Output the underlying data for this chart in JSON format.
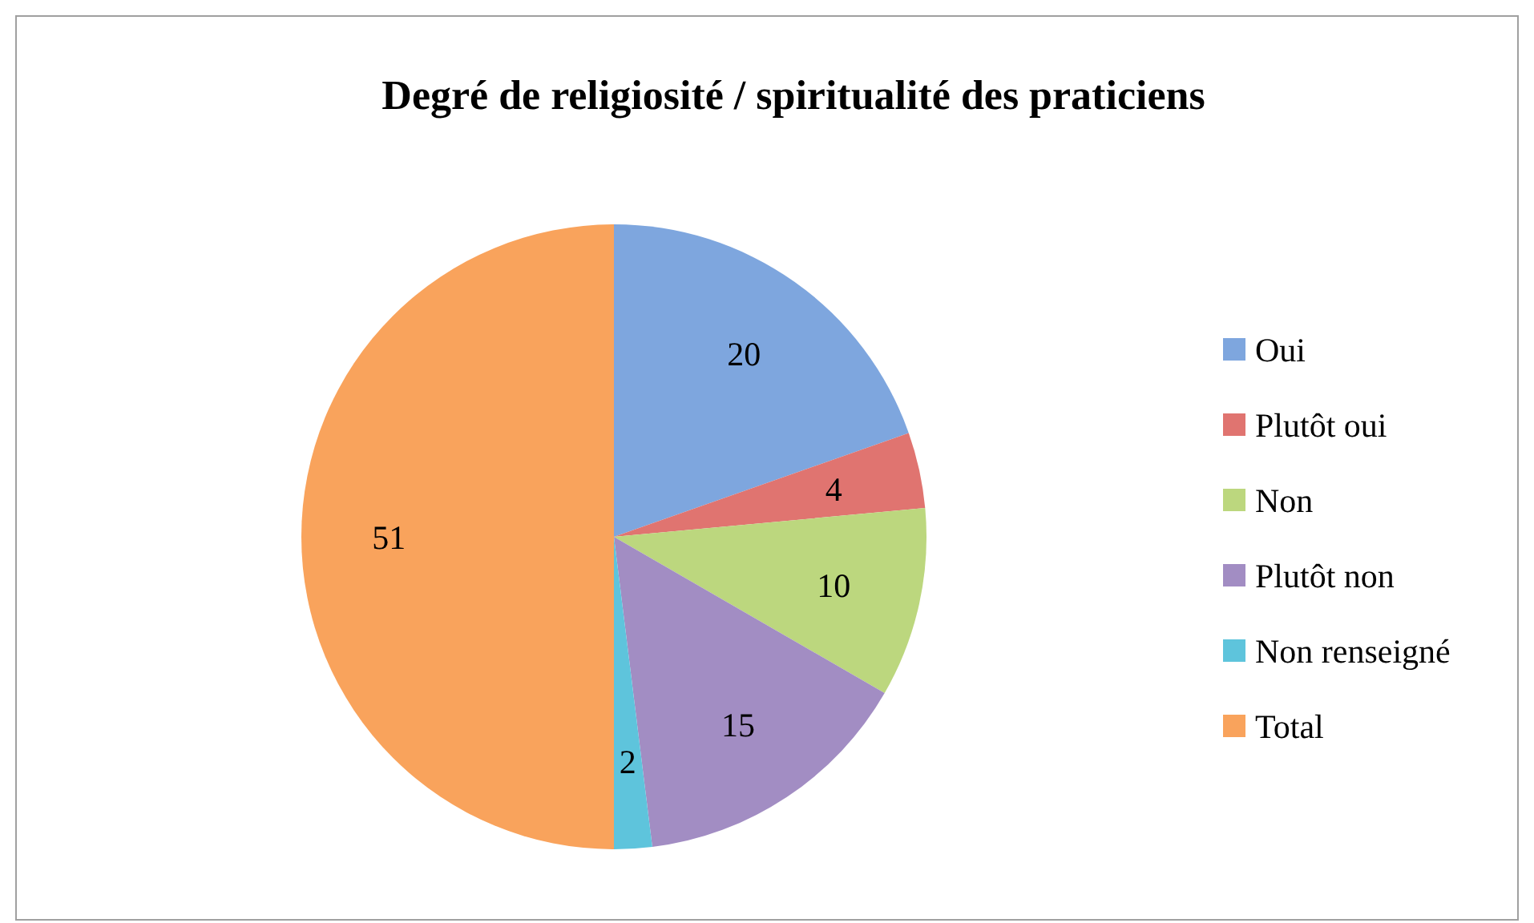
{
  "chart_data": {
    "type": "pie",
    "title": "Degré de religiosité / spiritualité des praticiens",
    "categories": [
      "Oui",
      "Plutôt oui",
      "Non",
      "Plutôt non",
      "Non renseigné",
      "Total"
    ],
    "values": [
      20,
      4,
      10,
      15,
      2,
      51
    ],
    "colors": [
      "#7ea6de",
      "#e07470",
      "#bcd77e",
      "#a28dc3",
      "#5ec4dc",
      "#f9a35c"
    ],
    "data_labels": true,
    "legend": "right"
  }
}
